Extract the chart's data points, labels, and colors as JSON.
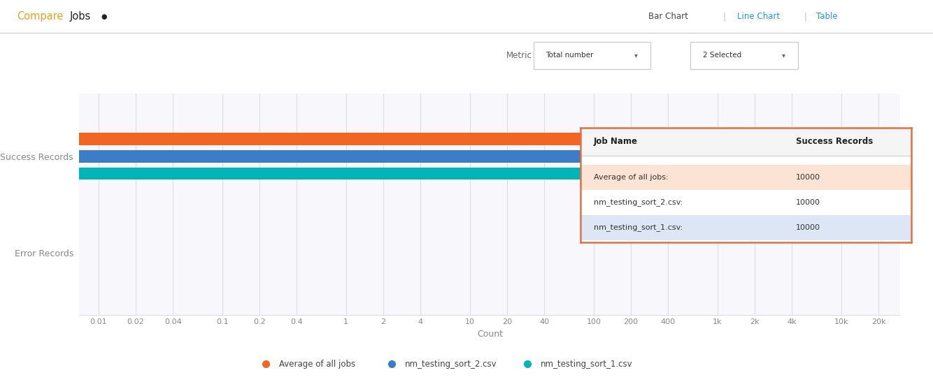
{
  "title": "Compare Jobs",
  "bg_color": "#ffffff",
  "plot_bg_color": "#f8f8fc",
  "categories": [
    "Success Records",
    "Error Records"
  ],
  "x_ticks": [
    0.01,
    0.02,
    0.04,
    0.1,
    0.2,
    0.4,
    1,
    2,
    4,
    10,
    20,
    40,
    100,
    200,
    400,
    1000,
    2000,
    4000,
    10000,
    20000
  ],
  "x_tick_labels": [
    "0.01",
    "0.02",
    "0.04",
    "0.1",
    "0.2",
    "0.4",
    "1",
    "2",
    "4",
    "10",
    "20",
    "40",
    "100",
    "200",
    "400",
    "1k",
    "2k",
    "4k",
    "10k",
    "20k"
  ],
  "series": [
    {
      "name": "Average of all jobs",
      "color": "#f26522",
      "values": [
        10000,
        0
      ]
    },
    {
      "name": "nm_testing_sort_2.csv",
      "color": "#3d7dc8",
      "values": [
        10000,
        0
      ]
    },
    {
      "name": "nm_testing_sort_1.csv",
      "color": "#00b5b8",
      "values": [
        10000,
        0
      ]
    }
  ],
  "xlabel": "Count",
  "grid_color": "#dedede",
  "axis_label_color": "#888888",
  "tick_color": "#888888",
  "bar_height": 0.13,
  "tooltip": {
    "header": [
      "Job Name",
      "Success Records"
    ],
    "rows": [
      [
        "Average of all jobs:",
        "10000"
      ],
      [
        "nm_testing_sort_2.csv:",
        "10000"
      ],
      [
        "nm_testing_sort_1.csv:",
        "10000"
      ]
    ],
    "highlight_color": "#fde3d3",
    "row2_color": "#ffffff",
    "row3_color": "#dce6f5",
    "border_color": "#e07040"
  },
  "legend": [
    {
      "label": "Average of all jobs",
      "color": "#f26522"
    },
    {
      "label": "nm_testing_sort_2.csv",
      "color": "#3d7dc8"
    },
    {
      "label": "nm_testing_sort_1.csv",
      "color": "#00b5b8"
    }
  ],
  "header_text": "Compare Jobs",
  "header_color": "#e8a020",
  "header_dot_color": "#222222",
  "nav_items": [
    "Bar Chart",
    "Line Chart",
    "Table"
  ],
  "nav_colors": [
    "#444444",
    "#2196F3",
    "#2196F3"
  ],
  "metric_label": "Metric",
  "metric_value": "Total number",
  "selected_value": "2 Selected"
}
